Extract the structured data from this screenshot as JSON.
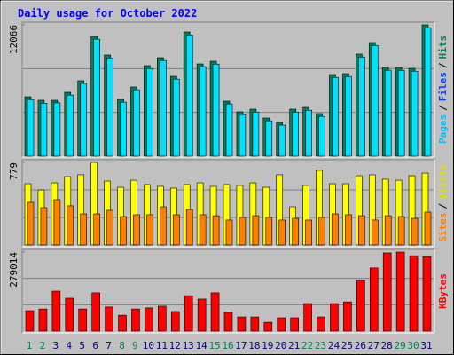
{
  "chart_data": {
    "type": "bar",
    "title": "Daily usage for October 2022",
    "categories": [
      "1",
      "2",
      "3",
      "4",
      "5",
      "6",
      "7",
      "8",
      "9",
      "10",
      "11",
      "12",
      "13",
      "14",
      "15",
      "16",
      "17",
      "18",
      "19",
      "20",
      "21",
      "22",
      "23",
      "24",
      "25",
      "26",
      "27",
      "28",
      "29",
      "30",
      "31"
    ],
    "category_colors": [
      "#00805c",
      "#00805c",
      "#000080",
      "#000080",
      "#000080",
      "#000080",
      "#000080",
      "#00805c",
      "#00805c",
      "#000080",
      "#000080",
      "#000080",
      "#000080",
      "#000080",
      "#00805c",
      "#00805c",
      "#000080",
      "#000080",
      "#000080",
      "#000080",
      "#000080",
      "#00805c",
      "#00805c",
      "#000080",
      "#000080",
      "#000080",
      "#000080",
      "#000080",
      "#00805c",
      "#00805c",
      "#000080"
    ],
    "legend_separator": "/",
    "panels": [
      {
        "ylim": [
          0,
          12066
        ],
        "yticks": [
          12066
        ],
        "legend_prefix": {
          "name": "Pages",
          "color": "#00c0ff"
        },
        "series": [
          {
            "name": "Hits",
            "color": "#00805c",
            "label_color": "#00805c",
            "values": [
              5462,
              5136,
              5136,
              5870,
              6930,
              11006,
              9294,
              5218,
              6359,
              8316,
              9049,
              7337,
              11414,
              8479,
              8723,
              5055,
              4076,
              4321,
              3506,
              3098,
              4321,
              4484,
              3913,
              7500,
              7582,
              9375,
              10435,
              8153,
              8153,
              8071,
              12066
            ]
          },
          {
            "name": "Files",
            "color": "#00e0ff",
            "label_color": "#0040ff",
            "values": [
              5200,
              4870,
              4900,
              5610,
              6680,
              10750,
              9030,
              4960,
              6100,
              8050,
              8790,
              7080,
              11150,
              8220,
              8460,
              4800,
              3820,
              4060,
              3250,
              2850,
              4060,
              4220,
              3660,
              7240,
              7320,
              9110,
              10170,
              7900,
              7890,
              7810,
              11800
            ]
          }
        ]
      },
      {
        "ylim": [
          0,
          779
        ],
        "yticks": [
          779
        ],
        "series": [
          {
            "name": "Visits",
            "color": "#ffff00",
            "label_color": "#e0e000",
            "values": [
              578,
              519,
              586,
              645,
              662,
              779,
              603,
              544,
              611,
              570,
              553,
              536,
              570,
              586,
              553,
              570,
              561,
              586,
              544,
              662,
              360,
              561,
              704,
              578,
              578,
              653,
              662,
              620,
              611,
              653,
              678
            ]
          },
          {
            "name": "Sites",
            "color": "#ff8000",
            "label_color": "#ff8000",
            "values": [
              402,
              352,
              427,
              369,
              293,
              293,
              327,
              268,
              285,
              285,
              360,
              285,
              335,
              285,
              276,
              235,
              260,
              276,
              260,
              235,
              251,
              235,
              260,
              293,
              285,
              276,
              235,
              276,
              268,
              251,
              310
            ]
          }
        ]
      },
      {
        "ylim": [
          0,
          279014
        ],
        "yticks": [
          279014
        ],
        "series": [
          {
            "name": "KBytes",
            "color": "#ff0000",
            "label_color": "#ff0000",
            "values": [
              72000,
              78000,
              141000,
              116000,
              78000,
              135000,
              85000,
              56000,
              78000,
              82000,
              88000,
              69000,
              125000,
              113000,
              135000,
              66000,
              50000,
              50000,
              31000,
              47000,
              47000,
              97000,
              50000,
              97000,
              103000,
              179000,
              223000,
              276000,
              279014,
              266000,
              263000
            ]
          }
        ]
      }
    ]
  }
}
